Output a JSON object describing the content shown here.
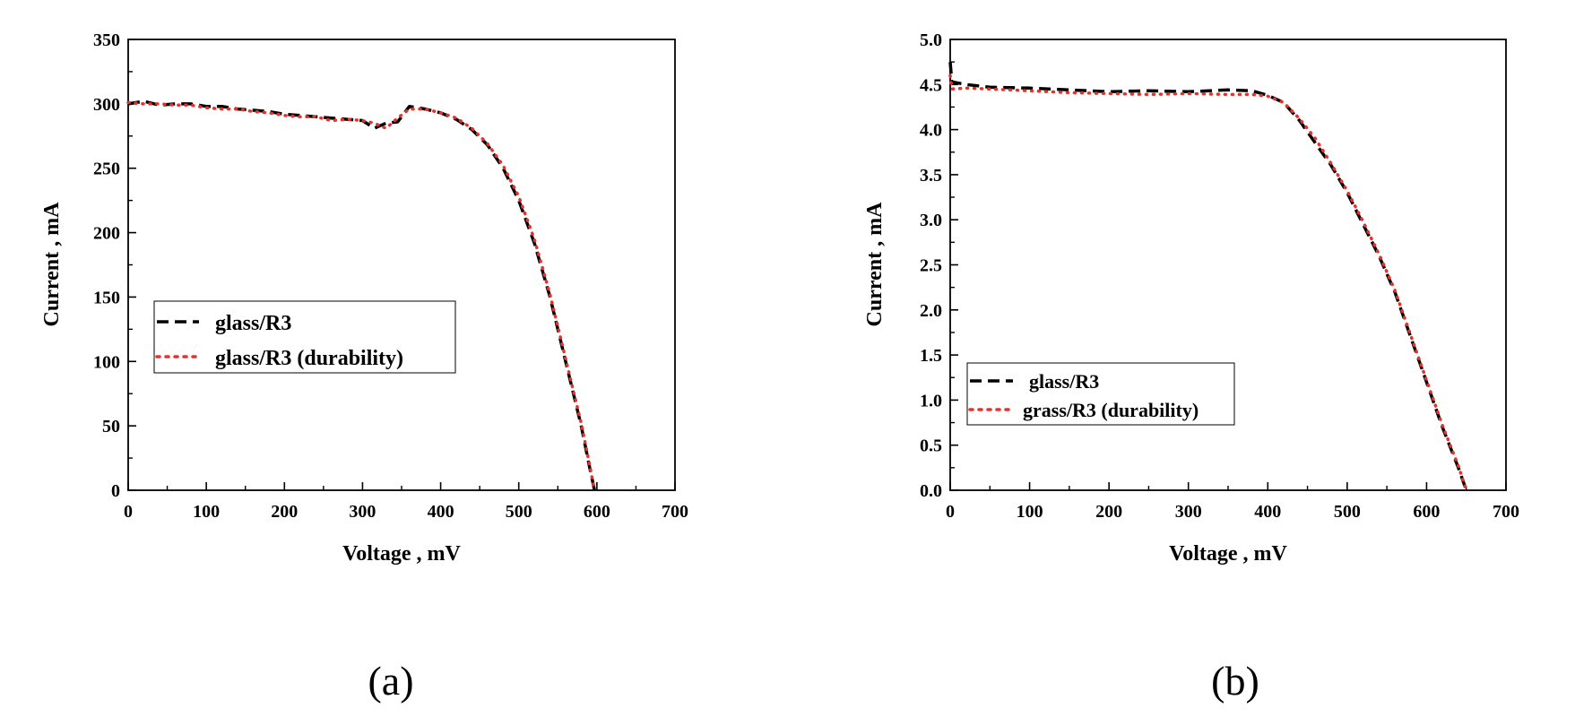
{
  "chart_data": [
    {
      "type": "line",
      "panel_label": "(a)",
      "xlabel": "Voltage , mV",
      "ylabel": "Current , mA",
      "xlim": [
        0,
        700
      ],
      "ylim": [
        0,
        350
      ],
      "xticks": [
        0,
        100,
        200,
        300,
        400,
        500,
        600,
        700
      ],
      "yticks": [
        0,
        50,
        100,
        150,
        200,
        250,
        300,
        350
      ],
      "legend_position": "center-left",
      "series": [
        {
          "name": "glass/R3",
          "color": "#000000",
          "style": "dashed",
          "x": [
            0,
            20,
            40,
            60,
            80,
            100,
            120,
            140,
            160,
            180,
            200,
            220,
            240,
            260,
            280,
            300,
            315,
            330,
            345,
            360,
            380,
            400,
            420,
            440,
            460,
            480,
            500,
            520,
            540,
            560,
            580,
            590,
            597
          ],
          "y": [
            300,
            302,
            299,
            300,
            300,
            298,
            298,
            296,
            295,
            294,
            292,
            291,
            290,
            289,
            288,
            287,
            281,
            285,
            286,
            298,
            296,
            293,
            288,
            280,
            268,
            250,
            225,
            192,
            150,
            100,
            50,
            20,
            0
          ]
        },
        {
          "name": "glass/R3 (durability)",
          "color": "#e5322d",
          "style": "dotted",
          "x": [
            0,
            20,
            40,
            60,
            80,
            100,
            120,
            140,
            160,
            180,
            200,
            220,
            240,
            260,
            280,
            300,
            315,
            330,
            345,
            360,
            380,
            400,
            420,
            440,
            460,
            480,
            500,
            520,
            540,
            560,
            580,
            590,
            597
          ],
          "y": [
            301,
            300,
            300,
            299,
            299,
            297,
            296,
            296,
            294,
            293,
            291,
            290,
            290,
            287,
            288,
            287,
            285,
            281,
            289,
            296,
            296,
            293,
            289,
            281,
            269,
            252,
            228,
            195,
            152,
            102,
            52,
            22,
            0
          ]
        }
      ]
    },
    {
      "type": "line",
      "panel_label": "(b)",
      "xlabel": "Voltage , mV",
      "ylabel": "Current , mA",
      "xlim": [
        0,
        700
      ],
      "ylim": [
        0,
        5
      ],
      "xticks": [
        0,
        100,
        200,
        300,
        400,
        500,
        600,
        700
      ],
      "yticks": [
        "0.0",
        "0.5",
        "1.0",
        "1.5",
        "2.0",
        "2.5",
        "3.0",
        "3.5",
        "4.0",
        "4.5",
        "5.0"
      ],
      "legend_position": "bottom-left",
      "series": [
        {
          "name": "glass/R3",
          "color": "#000000",
          "style": "dashed",
          "x": [
            0,
            2,
            20,
            50,
            100,
            150,
            200,
            250,
            300,
            350,
            380,
            400,
            420,
            440,
            460,
            480,
            500,
            520,
            540,
            560,
            580,
            600,
            620,
            640,
            650
          ],
          "y": [
            4.75,
            4.53,
            4.5,
            4.47,
            4.46,
            4.44,
            4.42,
            4.43,
            4.42,
            4.44,
            4.43,
            4.38,
            4.3,
            4.1,
            3.85,
            3.6,
            3.3,
            2.95,
            2.6,
            2.2,
            1.7,
            1.2,
            0.7,
            0.25,
            0.0
          ]
        },
        {
          "name": "grass/R3 (durability)",
          "color": "#e5322d",
          "style": "dotted",
          "x": [
            0,
            2,
            20,
            50,
            100,
            150,
            200,
            250,
            300,
            350,
            380,
            400,
            420,
            440,
            460,
            480,
            500,
            520,
            540,
            560,
            580,
            600,
            620,
            640,
            650
          ],
          "y": [
            4.6,
            4.45,
            4.46,
            4.45,
            4.43,
            4.41,
            4.4,
            4.39,
            4.4,
            4.39,
            4.39,
            4.37,
            4.3,
            4.12,
            3.9,
            3.62,
            3.32,
            2.98,
            2.62,
            2.22,
            1.72,
            1.22,
            0.72,
            0.27,
            0.0
          ]
        }
      ]
    }
  ]
}
